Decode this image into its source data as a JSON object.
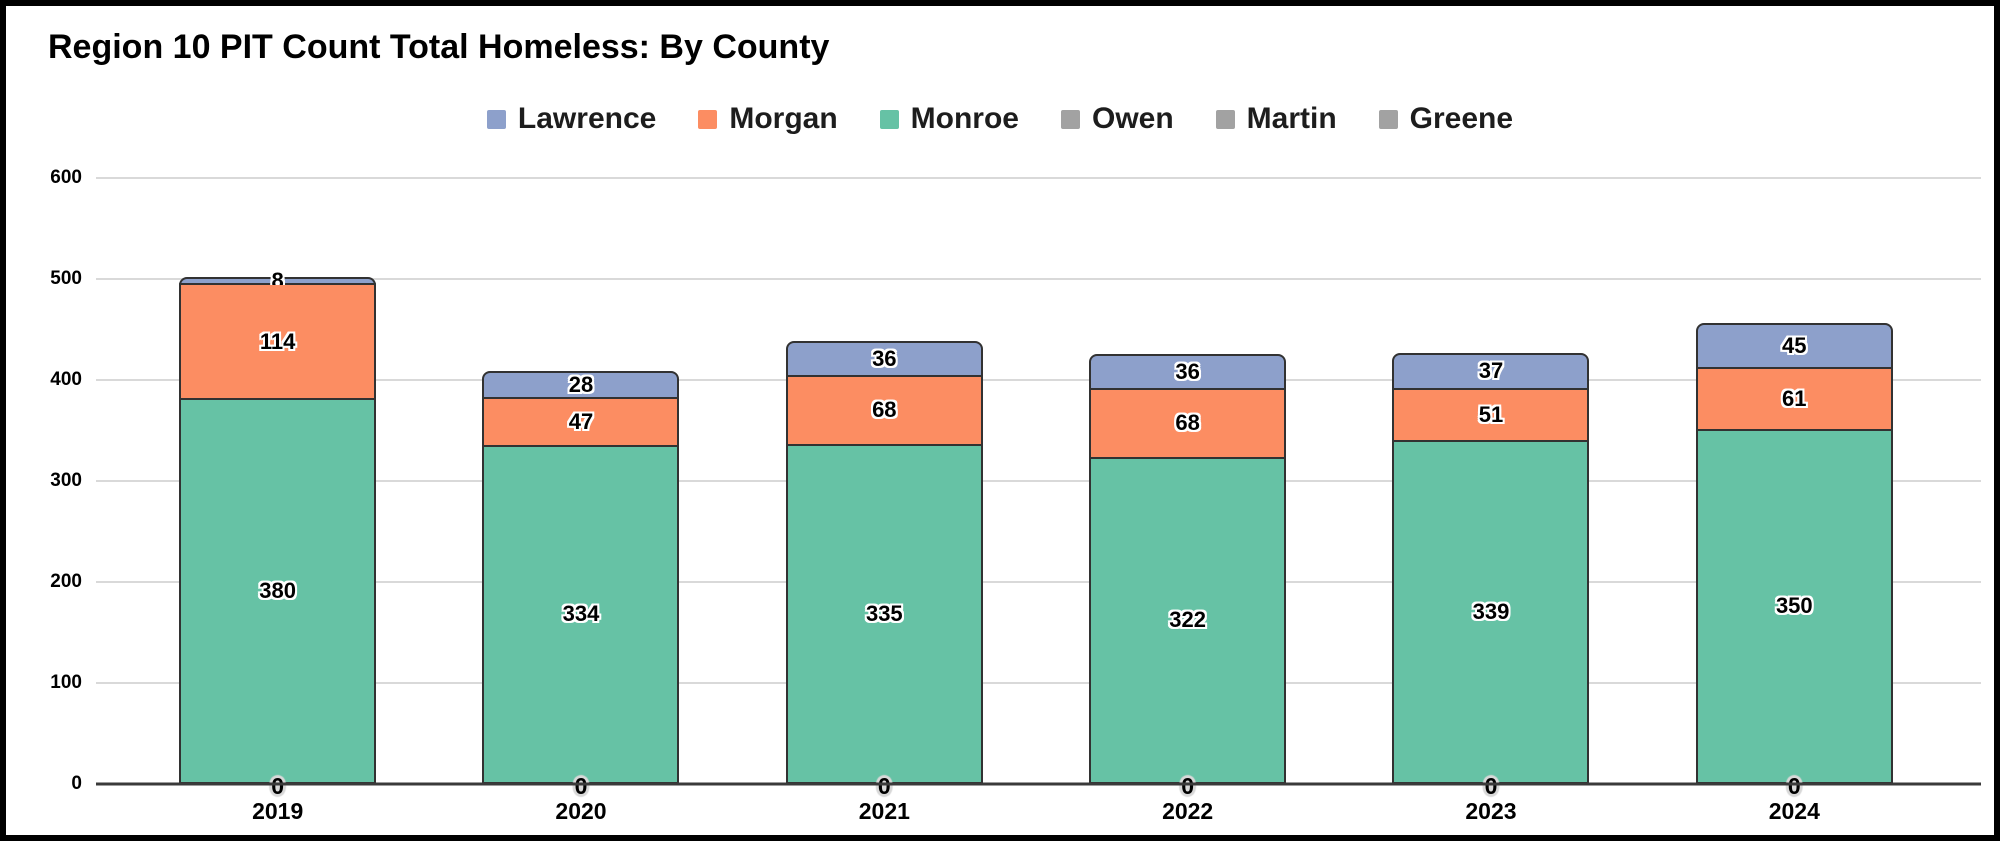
{
  "title": "Region 10 PIT Count Total Homeless: By County",
  "legend": [
    {
      "label": "Lawrence",
      "color": "#8da0cb"
    },
    {
      "label": "Morgan",
      "color": "#fc8d62"
    },
    {
      "label": "Monroe",
      "color": "#66c2a5"
    },
    {
      "label": "Owen",
      "color": "#a2a2a2"
    },
    {
      "label": "Martin",
      "color": "#a2a2a2"
    },
    {
      "label": "Greene",
      "color": "#a2a2a2"
    }
  ],
  "chart_data": {
    "type": "bar",
    "stacked": true,
    "title": "Region 10 PIT Count Total Homeless: By County",
    "categories": [
      "2019",
      "2020",
      "2021",
      "2022",
      "2023",
      "2024"
    ],
    "series": [
      {
        "name": "Monroe",
        "color": "#66c2a5",
        "values": [
          380,
          334,
          335,
          322,
          339,
          350
        ]
      },
      {
        "name": "Morgan",
        "color": "#fc8d62",
        "values": [
          114,
          47,
          68,
          68,
          51,
          61
        ]
      },
      {
        "name": "Lawrence",
        "color": "#8da0cb",
        "values": [
          8,
          28,
          36,
          36,
          37,
          45
        ]
      },
      {
        "name": "Owen",
        "color": "#a2a2a2",
        "values": [
          0,
          0,
          0,
          0,
          0,
          0
        ]
      },
      {
        "name": "Martin",
        "color": "#a2a2a2",
        "values": [
          0,
          0,
          0,
          0,
          0,
          0
        ]
      },
      {
        "name": "Greene",
        "color": "#a2a2a2",
        "values": [
          0,
          0,
          0,
          0,
          0,
          0
        ]
      }
    ],
    "totals": [
      502,
      409,
      439,
      426,
      427,
      456
    ],
    "xlabel": "",
    "ylabel": "",
    "ylim": [
      0,
      600
    ],
    "yticks": [
      0,
      100,
      200,
      300,
      400,
      500,
      600
    ],
    "grid": true,
    "legend_position": "top",
    "data_labels": true,
    "zero_label": "0"
  }
}
